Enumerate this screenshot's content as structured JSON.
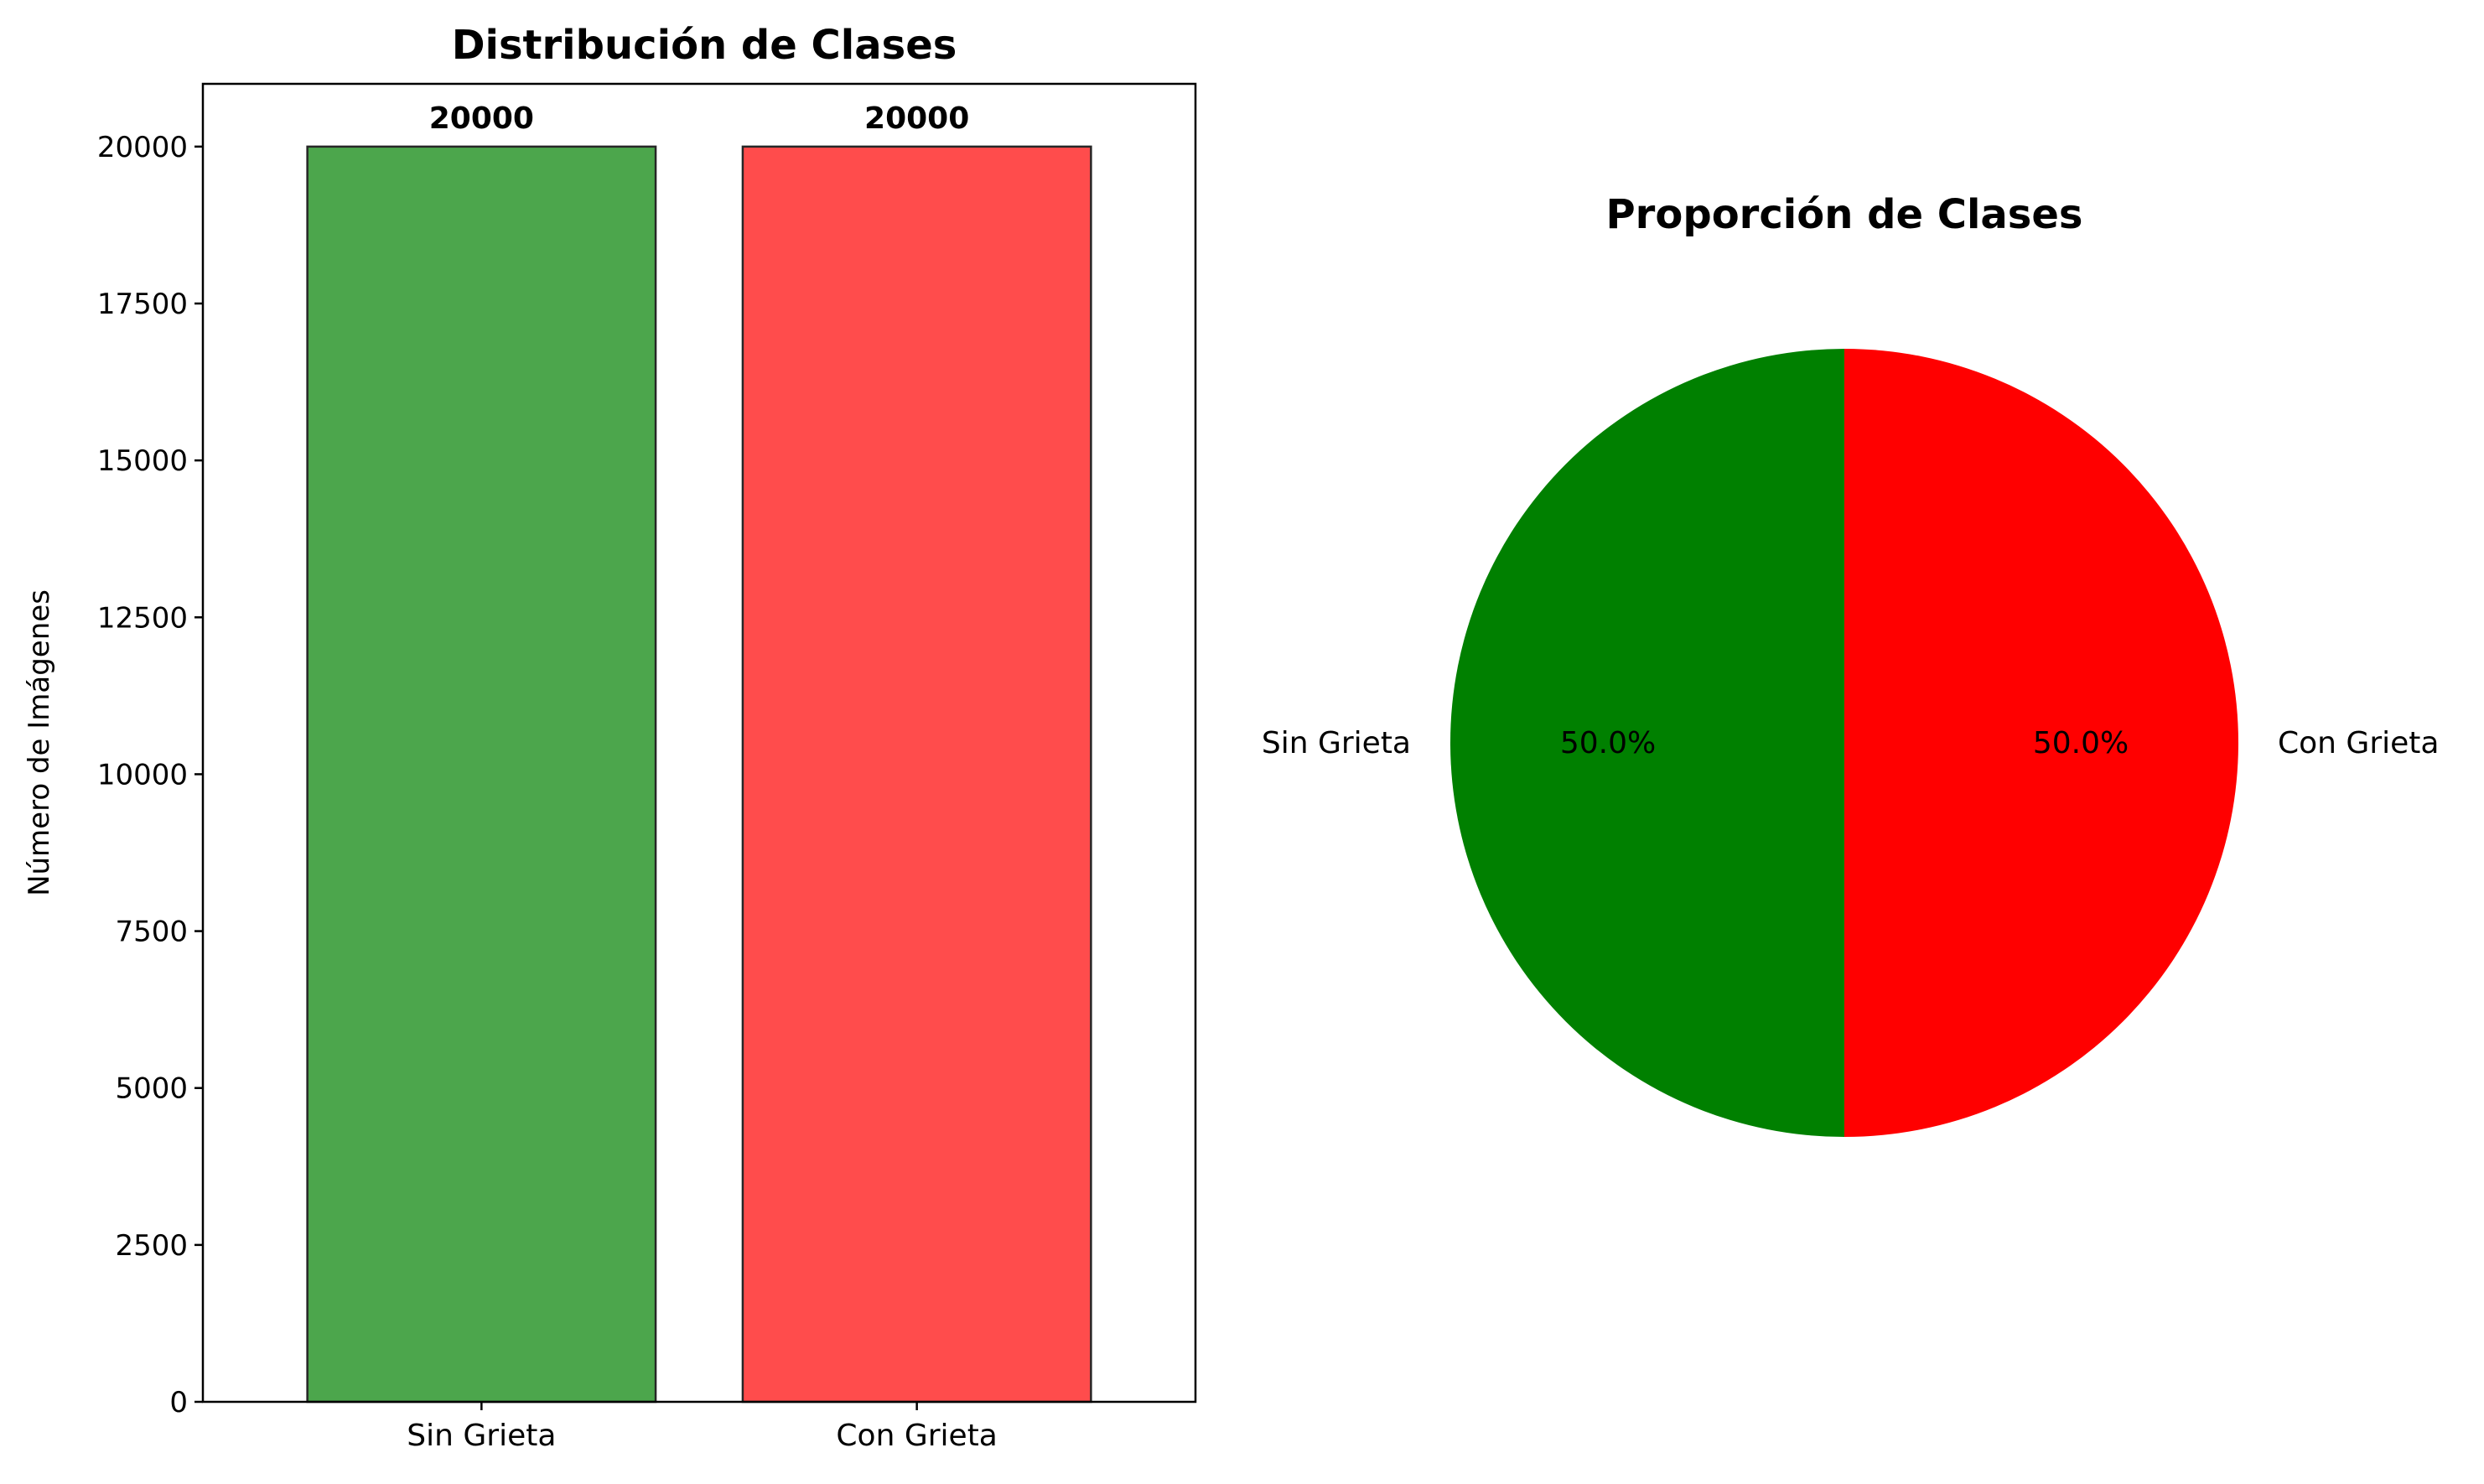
{
  "chart_data": [
    {
      "type": "bar",
      "title": "Distribución de Clases",
      "xlabel": "",
      "ylabel": "Número de Imágenes",
      "categories": [
        "Sin Grieta",
        "Con Grieta"
      ],
      "values": [
        20000,
        20000
      ],
      "data_labels": [
        "20000",
        "20000"
      ],
      "colors": [
        "#4ca64c",
        "#ff4c4c"
      ],
      "edge_color": "#262626",
      "ylim": [
        0,
        21000
      ],
      "yticks": [
        0,
        2500,
        5000,
        7500,
        10000,
        12500,
        15000,
        17500,
        20000
      ],
      "ytick_labels": [
        "0",
        "2500",
        "5000",
        "7500",
        "10000",
        "12500",
        "15000",
        "17500",
        "20000"
      ],
      "grid": false
    },
    {
      "type": "pie",
      "title": "Proporción de Clases",
      "labels": [
        "Sin Grieta",
        "Con Grieta"
      ],
      "values": [
        50.0,
        50.0
      ],
      "pct_labels": [
        "50.0%",
        "50.0%"
      ],
      "colors": [
        "#008000",
        "#ff0000"
      ],
      "start_angle": 90
    }
  ]
}
